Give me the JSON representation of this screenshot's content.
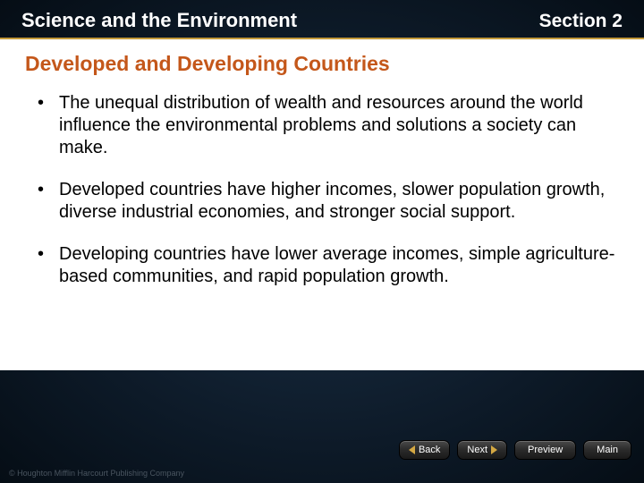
{
  "header": {
    "left": "Science and the Environment",
    "right": "Section 2"
  },
  "content": {
    "title": "Developed and Developing Countries",
    "bullets": [
      "The unequal distribution of wealth and resources around the world influence the environmental problems and solutions a society can make.",
      "Developed countries have higher incomes, slower population growth, diverse industrial economies, and stronger social support.",
      "Developing countries have lower average incomes, simple agriculture-based communities, and rapid population growth."
    ]
  },
  "nav": {
    "back": "Back",
    "next": "Next",
    "preview": "Preview",
    "main": "Main"
  },
  "copyright": "© Houghton Mifflin Harcourt Publishing Company",
  "colors": {
    "accent_gold": "#c49a3a",
    "title_orange": "#c4571a",
    "bg_dark": "#0d1a28",
    "text_white": "#ffffff",
    "text_black": "#000000"
  }
}
